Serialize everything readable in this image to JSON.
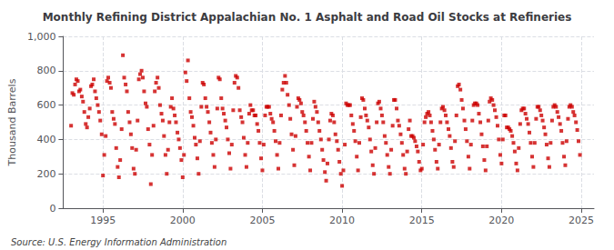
{
  "chart_data": {
    "type": "scatter",
    "title": "Monthly Refining District Appalachian No. 1 Asphalt and Road Oil Stocks at Refineries",
    "ylabel": "Thousand Barrels",
    "annotations": [
      "Source: U.S. Energy Information Administration"
    ],
    "color": "#CC0000",
    "marker": "square",
    "grid": true,
    "xlim": [
      1992.5,
      2025.8
    ],
    "xticks": [
      1995,
      2000,
      2005,
      2010,
      2015,
      2020,
      2025
    ],
    "ylim": [
      0,
      1000
    ],
    "yticks": [
      0,
      200,
      400,
      600,
      800,
      {
        "value": 1000,
        "label": "1,000"
      }
    ],
    "x": [
      1993.0,
      1993.08,
      1993.17,
      1993.25,
      1993.33,
      1993.42,
      1993.5,
      1993.58,
      1993.67,
      1993.75,
      1993.83,
      1993.92,
      1994.0,
      1994.08,
      1994.17,
      1994.25,
      1994.33,
      1994.42,
      1994.5,
      1994.58,
      1994.67,
      1994.75,
      1994.83,
      1994.92,
      1995.0,
      1995.08,
      1995.17,
      1995.25,
      1995.33,
      1995.42,
      1995.5,
      1995.58,
      1995.67,
      1995.75,
      1995.83,
      1995.92,
      1996.0,
      1996.08,
      1996.17,
      1996.25,
      1996.33,
      1996.42,
      1996.5,
      1996.58,
      1996.67,
      1996.75,
      1996.83,
      1996.92,
      1997.0,
      1997.08,
      1997.17,
      1997.25,
      1997.33,
      1997.42,
      1997.5,
      1997.58,
      1997.67,
      1997.75,
      1997.83,
      1997.92,
      1998.0,
      1998.08,
      1998.17,
      1998.25,
      1998.33,
      1998.42,
      1998.5,
      1998.58,
      1998.67,
      1998.75,
      1998.83,
      1998.92,
      1999.0,
      1999.08,
      1999.17,
      1999.25,
      1999.33,
      1999.42,
      1999.5,
      1999.58,
      1999.67,
      1999.75,
      1999.83,
      1999.92,
      2000.0,
      2000.08,
      2000.17,
      2000.25,
      2000.33,
      2000.42,
      2000.5,
      2000.58,
      2000.67,
      2000.75,
      2000.83,
      2000.92,
      2001.0,
      2001.08,
      2001.17,
      2001.25,
      2001.33,
      2001.42,
      2001.5,
      2001.58,
      2001.67,
      2001.75,
      2001.83,
      2001.92,
      2002.0,
      2002.08,
      2002.17,
      2002.25,
      2002.33,
      2002.42,
      2002.5,
      2002.58,
      2002.67,
      2002.75,
      2002.83,
      2002.92,
      2003.0,
      2003.08,
      2003.17,
      2003.25,
      2003.33,
      2003.42,
      2003.5,
      2003.58,
      2003.67,
      2003.75,
      2003.83,
      2003.92,
      2004.0,
      2004.08,
      2004.17,
      2004.25,
      2004.33,
      2004.42,
      2004.5,
      2004.58,
      2004.67,
      2004.75,
      2004.83,
      2004.92,
      2005.0,
      2005.08,
      2005.17,
      2005.25,
      2005.33,
      2005.42,
      2005.5,
      2005.58,
      2005.67,
      2005.75,
      2005.83,
      2005.92,
      2006.0,
      2006.08,
      2006.17,
      2006.25,
      2006.33,
      2006.42,
      2006.5,
      2006.58,
      2006.67,
      2006.75,
      2006.83,
      2006.92,
      2007.0,
      2007.08,
      2007.17,
      2007.25,
      2007.33,
      2007.42,
      2007.5,
      2007.58,
      2007.67,
      2007.75,
      2007.83,
      2007.92,
      2008.0,
      2008.08,
      2008.17,
      2008.25,
      2008.33,
      2008.42,
      2008.5,
      2008.58,
      2008.67,
      2008.75,
      2008.83,
      2008.92,
      2009.0,
      2009.08,
      2009.17,
      2009.25,
      2009.33,
      2009.42,
      2009.5,
      2009.58,
      2009.67,
      2009.75,
      2009.83,
      2009.92,
      2010.0,
      2010.08,
      2010.17,
      2010.25,
      2010.33,
      2010.42,
      2010.5,
      2010.58,
      2010.67,
      2010.75,
      2010.83,
      2010.92,
      2011.0,
      2011.08,
      2011.17,
      2011.25,
      2011.33,
      2011.42,
      2011.5,
      2011.58,
      2011.67,
      2011.75,
      2011.83,
      2011.92,
      2012.0,
      2012.08,
      2012.17,
      2012.25,
      2012.33,
      2012.42,
      2012.5,
      2012.58,
      2012.67,
      2012.75,
      2012.83,
      2012.92,
      2013.0,
      2013.08,
      2013.17,
      2013.25,
      2013.33,
      2013.42,
      2013.5,
      2013.58,
      2013.67,
      2013.75,
      2013.83,
      2013.92,
      2014.0,
      2014.08,
      2014.17,
      2014.25,
      2014.33,
      2014.42,
      2014.5,
      2014.58,
      2014.67,
      2014.75,
      2014.83,
      2014.92,
      2015.0,
      2015.08,
      2015.17,
      2015.25,
      2015.33,
      2015.42,
      2015.5,
      2015.58,
      2015.67,
      2015.75,
      2015.83,
      2015.92,
      2016.0,
      2016.08,
      2016.17,
      2016.25,
      2016.33,
      2016.42,
      2016.5,
      2016.58,
      2016.67,
      2016.75,
      2016.83,
      2016.92,
      2017.0,
      2017.08,
      2017.17,
      2017.25,
      2017.33,
      2017.42,
      2017.5,
      2017.58,
      2017.67,
      2017.75,
      2017.83,
      2017.92,
      2018.0,
      2018.08,
      2018.17,
      2018.25,
      2018.33,
      2018.42,
      2018.5,
      2018.58,
      2018.67,
      2018.75,
      2018.83,
      2018.92,
      2019.0,
      2019.08,
      2019.17,
      2019.25,
      2019.33,
      2019.42,
      2019.5,
      2019.58,
      2019.67,
      2019.75,
      2019.83,
      2019.92,
      2020.0,
      2020.08,
      2020.17,
      2020.25,
      2020.33,
      2020.42,
      2020.5,
      2020.58,
      2020.67,
      2020.75,
      2020.83,
      2020.92,
      2021.0,
      2021.08,
      2021.17,
      2021.25,
      2021.33,
      2021.42,
      2021.5,
      2021.58,
      2021.67,
      2021.75,
      2021.83,
      2021.92,
      2022.0,
      2022.08,
      2022.17,
      2022.25,
      2022.33,
      2022.42,
      2022.5,
      2022.58,
      2022.67,
      2022.75,
      2022.83,
      2022.92,
      2023.0,
      2023.08,
      2023.17,
      2023.25,
      2023.33,
      2023.42,
      2023.5,
      2023.58,
      2023.67,
      2023.75,
      2023.83,
      2023.92,
      2024.0,
      2024.08,
      2024.17,
      2024.25,
      2024.33,
      2024.42,
      2024.5,
      2024.58,
      2024.67,
      2024.75,
      2024.83,
      2024.92
    ],
    "values": [
      480,
      670,
      660,
      720,
      750,
      740,
      680,
      690,
      650,
      620,
      560,
      490,
      470,
      530,
      580,
      710,
      720,
      750,
      680,
      640,
      600,
      560,
      510,
      430,
      190,
      310,
      420,
      740,
      760,
      730,
      700,
      560,
      520,
      490,
      350,
      240,
      180,
      280,
      460,
      890,
      760,
      720,
      680,
      560,
      500,
      430,
      350,
      230,
      200,
      340,
      510,
      750,
      780,
      800,
      760,
      680,
      610,
      590,
      460,
      370,
      140,
      310,
      480,
      680,
      730,
      760,
      700,
      600,
      550,
      510,
      420,
      310,
      200,
      340,
      500,
      590,
      640,
      580,
      540,
      500,
      440,
      400,
      350,
      280,
      180,
      310,
      790,
      740,
      860,
      640,
      560,
      530,
      480,
      410,
      370,
      290,
      200,
      390,
      590,
      730,
      720,
      640,
      590,
      560,
      500,
      440,
      380,
      310,
      240,
      400,
      580,
      760,
      750,
      640,
      580,
      550,
      510,
      470,
      400,
      320,
      230,
      370,
      570,
      730,
      770,
      760,
      700,
      570,
      530,
      500,
      410,
      310,
      240,
      380,
      550,
      600,
      570,
      570,
      540,
      540,
      490,
      450,
      380,
      290,
      220,
      370,
      540,
      590,
      590,
      590,
      550,
      520,
      500,
      450,
      390,
      310,
      230,
      380,
      540,
      690,
      730,
      770,
      730,
      660,
      600,
      520,
      430,
      340,
      250,
      420,
      590,
      640,
      630,
      610,
      560,
      540,
      500,
      450,
      380,
      300,
      220,
      380,
      520,
      620,
      590,
      560,
      500,
      450,
      400,
      340,
      280,
      210,
      160,
      260,
      400,
      510,
      550,
      540,
      500,
      430,
      390,
      340,
      270,
      200,
      130,
      220,
      370,
      610,
      600,
      600,
      600,
      540,
      490,
      450,
      390,
      300,
      220,
      380,
      530,
      640,
      630,
      580,
      540,
      510,
      470,
      400,
      330,
      250,
      200,
      350,
      500,
      610,
      620,
      580,
      540,
      500,
      420,
      380,
      310,
      240,
      200,
      340,
      480,
      630,
      630,
      580,
      510,
      480,
      430,
      380,
      310,
      230,
      200,
      330,
      460,
      510,
      420,
      420,
      410,
      390,
      360,
      330,
      270,
      220,
      230,
      370,
      500,
      530,
      550,
      560,
      540,
      500,
      450,
      400,
      340,
      270,
      230,
      370,
      500,
      580,
      590,
      570,
      540,
      500,
      460,
      420,
      350,
      270,
      240,
      390,
      540,
      710,
      720,
      690,
      630,
      580,
      510,
      460,
      390,
      300,
      230,
      370,
      510,
      600,
      610,
      610,
      600,
      550,
      500,
      430,
      360,
      280,
      220,
      360,
      510,
      620,
      640,
      630,
      600,
      570,
      530,
      480,
      400,
      310,
      260,
      400,
      540,
      540,
      470,
      470,
      460,
      450,
      420,
      380,
      330,
      260,
      220,
      350,
      490,
      570,
      580,
      580,
      550,
      520,
      490,
      440,
      380,
      300,
      240,
      380,
      520,
      590,
      590,
      570,
      540,
      510,
      470,
      430,
      370,
      290,
      240,
      380,
      510,
      590,
      600,
      590,
      560,
      530,
      490,
      450,
      380,
      300,
      250,
      390,
      520,
      590,
      600,
      590,
      560,
      540,
      500,
      455,
      390,
      310
    ]
  }
}
